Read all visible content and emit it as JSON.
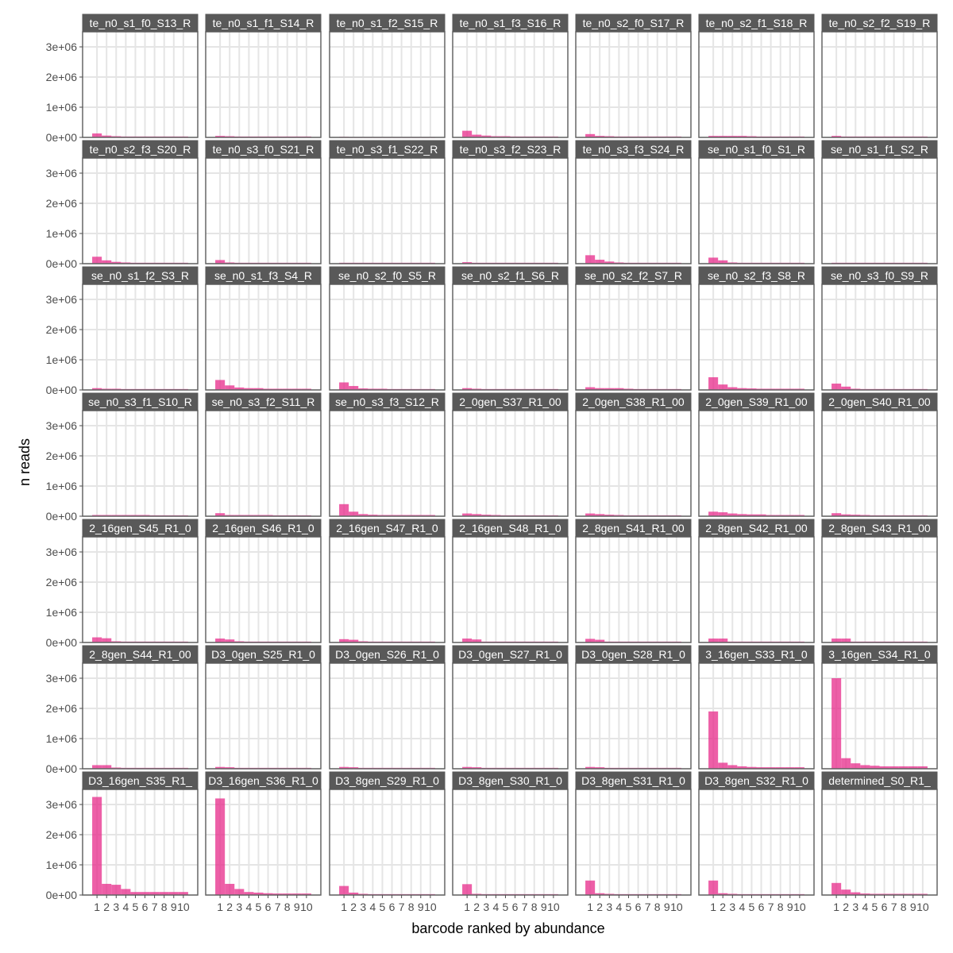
{
  "chart_data": {
    "type": "bar",
    "layout": "faceted 7x7 grid",
    "xlabel": "barcode ranked by abundance",
    "ylabel": "n reads",
    "x_ticks": [
      "1",
      "2",
      "3",
      "4",
      "5",
      "6",
      "7",
      "8",
      "9",
      "10"
    ],
    "y_ticks": [
      "0e+00",
      "1e+06",
      "2e+06",
      "3e+06"
    ],
    "ylim": [
      0,
      3500000
    ],
    "bar_color": "#e7298a",
    "strip_color": "#595959",
    "grid": true,
    "facets": [
      {
        "label": "te_n0_s1_f0_S13_R",
        "values": [
          130000,
          60000,
          40000,
          30000,
          30000,
          30000,
          30000,
          30000,
          30000,
          30000
        ]
      },
      {
        "label": "te_n0_s1_f1_S14_R",
        "values": [
          50000,
          40000,
          30000,
          30000,
          30000,
          30000,
          30000,
          30000,
          30000,
          30000
        ]
      },
      {
        "label": "te_n0_s1_f2_S15_R",
        "values": [
          20000,
          10000,
          10000,
          10000,
          10000,
          10000,
          10000,
          10000,
          10000,
          10000
        ]
      },
      {
        "label": "te_n0_s1_f3_S16_R",
        "values": [
          220000,
          90000,
          60000,
          40000,
          40000,
          30000,
          30000,
          30000,
          30000,
          30000
        ]
      },
      {
        "label": "te_n0_s2_f0_S17_R",
        "values": [
          110000,
          50000,
          40000,
          30000,
          30000,
          30000,
          30000,
          30000,
          30000,
          30000
        ]
      },
      {
        "label": "te_n0_s2_f1_S18_R",
        "values": [
          50000,
          50000,
          50000,
          50000,
          40000,
          30000,
          30000,
          30000,
          30000,
          30000
        ]
      },
      {
        "label": "te_n0_s2_f2_S19_R",
        "values": [
          50000,
          30000,
          30000,
          30000,
          30000,
          30000,
          30000,
          30000,
          30000,
          30000
        ]
      },
      {
        "label": "te_n0_s2_f3_S20_R",
        "values": [
          230000,
          110000,
          60000,
          40000,
          30000,
          30000,
          30000,
          30000,
          30000,
          30000
        ]
      },
      {
        "label": "te_n0_s3_f0_S21_R",
        "values": [
          120000,
          40000,
          30000,
          30000,
          30000,
          30000,
          30000,
          30000,
          30000,
          30000
        ]
      },
      {
        "label": "te_n0_s3_f1_S22_R",
        "values": [
          30000,
          30000,
          30000,
          30000,
          30000,
          30000,
          30000,
          30000,
          30000,
          30000
        ]
      },
      {
        "label": "te_n0_s3_f2_S23_R",
        "values": [
          50000,
          30000,
          30000,
          30000,
          30000,
          30000,
          30000,
          30000,
          30000,
          30000
        ]
      },
      {
        "label": "te_n0_s3_f3_S24_R",
        "values": [
          280000,
          130000,
          70000,
          40000,
          30000,
          30000,
          30000,
          30000,
          30000,
          30000
        ]
      },
      {
        "label": "se_n0_s1_f0_S1_R",
        "values": [
          200000,
          110000,
          40000,
          30000,
          30000,
          30000,
          30000,
          30000,
          30000,
          30000
        ]
      },
      {
        "label": "se_n0_s1_f1_S2_R",
        "values": [
          30000,
          30000,
          30000,
          30000,
          30000,
          30000,
          30000,
          30000,
          30000,
          30000
        ]
      },
      {
        "label": "se_n0_s1_f2_S3_R",
        "values": [
          60000,
          40000,
          40000,
          30000,
          30000,
          30000,
          30000,
          30000,
          30000,
          30000
        ]
      },
      {
        "label": "se_n0_s1_f3_S4_R",
        "values": [
          330000,
          150000,
          80000,
          60000,
          60000,
          40000,
          40000,
          40000,
          40000,
          40000
        ]
      },
      {
        "label": "se_n0_s2_f0_S5_R",
        "values": [
          250000,
          130000,
          50000,
          40000,
          40000,
          30000,
          30000,
          30000,
          30000,
          30000
        ]
      },
      {
        "label": "se_n0_s2_f1_S6_R",
        "values": [
          60000,
          40000,
          30000,
          30000,
          30000,
          30000,
          30000,
          30000,
          30000,
          30000
        ]
      },
      {
        "label": "se_n0_s2_f2_S7_R",
        "values": [
          90000,
          60000,
          60000,
          60000,
          40000,
          30000,
          30000,
          30000,
          30000,
          30000
        ]
      },
      {
        "label": "se_n0_s2_f3_S8_R",
        "values": [
          420000,
          180000,
          90000,
          60000,
          50000,
          40000,
          40000,
          40000,
          40000,
          40000
        ]
      },
      {
        "label": "se_n0_s3_f0_S9_R",
        "values": [
          210000,
          110000,
          40000,
          30000,
          30000,
          30000,
          30000,
          30000,
          30000,
          30000
        ]
      },
      {
        "label": "se_n0_s3_f1_S10_R",
        "values": [
          40000,
          40000,
          40000,
          40000,
          40000,
          40000,
          30000,
          30000,
          30000,
          30000
        ]
      },
      {
        "label": "se_n0_s3_f2_S11_R",
        "values": [
          100000,
          40000,
          40000,
          40000,
          40000,
          40000,
          30000,
          30000,
          30000,
          30000
        ]
      },
      {
        "label": "se_n0_s3_f3_S12_R",
        "values": [
          400000,
          150000,
          70000,
          50000,
          40000,
          40000,
          40000,
          40000,
          40000,
          40000
        ]
      },
      {
        "label": "2_0gen_S37_R1_00",
        "values": [
          90000,
          70000,
          50000,
          40000,
          30000,
          30000,
          30000,
          30000,
          30000,
          30000
        ]
      },
      {
        "label": "2_0gen_S38_R1_00",
        "values": [
          90000,
          70000,
          50000,
          40000,
          30000,
          30000,
          30000,
          30000,
          30000,
          30000
        ]
      },
      {
        "label": "2_0gen_S39_R1_00",
        "values": [
          150000,
          130000,
          90000,
          70000,
          60000,
          60000,
          40000,
          40000,
          40000,
          40000
        ]
      },
      {
        "label": "2_0gen_S40_R1_00",
        "values": [
          100000,
          60000,
          50000,
          40000,
          30000,
          30000,
          30000,
          30000,
          30000,
          30000
        ]
      },
      {
        "label": "2_16gen_S45_R1_0",
        "values": [
          170000,
          140000,
          40000,
          30000,
          30000,
          30000,
          30000,
          30000,
          30000,
          30000
        ]
      },
      {
        "label": "2_16gen_S46_R1_0",
        "values": [
          130000,
          100000,
          40000,
          30000,
          30000,
          30000,
          30000,
          30000,
          30000,
          30000
        ]
      },
      {
        "label": "2_16gen_S47_R1_0",
        "values": [
          110000,
          90000,
          40000,
          30000,
          30000,
          30000,
          30000,
          30000,
          30000,
          30000
        ]
      },
      {
        "label": "2_16gen_S48_R1_0",
        "values": [
          130000,
          100000,
          30000,
          30000,
          30000,
          30000,
          30000,
          30000,
          30000,
          30000
        ]
      },
      {
        "label": "2_8gen_S41_R1_00",
        "values": [
          120000,
          90000,
          30000,
          30000,
          30000,
          30000,
          30000,
          30000,
          30000,
          30000
        ]
      },
      {
        "label": "2_8gen_S42_R1_00",
        "values": [
          130000,
          130000,
          30000,
          30000,
          30000,
          30000,
          30000,
          30000,
          30000,
          30000
        ]
      },
      {
        "label": "2_8gen_S43_R1_00",
        "values": [
          130000,
          130000,
          30000,
          30000,
          30000,
          30000,
          30000,
          30000,
          30000,
          30000
        ]
      },
      {
        "label": "2_8gen_S44_R1_00",
        "values": [
          120000,
          120000,
          40000,
          30000,
          30000,
          30000,
          30000,
          30000,
          30000,
          30000
        ]
      },
      {
        "label": "D3_0gen_S25_R1_0",
        "values": [
          60000,
          50000,
          30000,
          30000,
          30000,
          30000,
          30000,
          30000,
          30000,
          30000
        ]
      },
      {
        "label": "D3_0gen_S26_R1_0",
        "values": [
          60000,
          50000,
          30000,
          30000,
          30000,
          30000,
          30000,
          30000,
          30000,
          30000
        ]
      },
      {
        "label": "D3_0gen_S27_R1_0",
        "values": [
          60000,
          50000,
          30000,
          30000,
          30000,
          30000,
          30000,
          30000,
          30000,
          30000
        ]
      },
      {
        "label": "D3_0gen_S28_R1_0",
        "values": [
          60000,
          50000,
          30000,
          30000,
          30000,
          30000,
          30000,
          30000,
          30000,
          30000
        ]
      },
      {
        "label": "3_16gen_S33_R1_0",
        "values": [
          1900000,
          200000,
          120000,
          80000,
          60000,
          50000,
          50000,
          50000,
          50000,
          50000
        ]
      },
      {
        "label": "3_16gen_S34_R1_0",
        "values": [
          3000000,
          350000,
          180000,
          120000,
          100000,
          80000,
          80000,
          80000,
          80000,
          80000
        ]
      },
      {
        "label": "D3_16gen_S35_R1_",
        "values": [
          3250000,
          370000,
          340000,
          200000,
          100000,
          100000,
          100000,
          100000,
          100000,
          100000
        ]
      },
      {
        "label": "D3_16gen_S36_R1_0",
        "values": [
          3200000,
          370000,
          200000,
          100000,
          80000,
          60000,
          50000,
          50000,
          50000,
          50000
        ]
      },
      {
        "label": "D3_8gen_S29_R1_0",
        "values": [
          300000,
          80000,
          40000,
          30000,
          30000,
          30000,
          30000,
          30000,
          30000,
          30000
        ]
      },
      {
        "label": "D3_8gen_S30_R1_0",
        "values": [
          360000,
          40000,
          30000,
          30000,
          30000,
          30000,
          30000,
          30000,
          30000,
          30000
        ]
      },
      {
        "label": "D3_8gen_S31_R1_0",
        "values": [
          480000,
          60000,
          40000,
          30000,
          30000,
          30000,
          30000,
          30000,
          30000,
          30000
        ]
      },
      {
        "label": "D3_8gen_S32_R1_0",
        "values": [
          480000,
          60000,
          40000,
          30000,
          30000,
          30000,
          30000,
          30000,
          30000,
          30000
        ]
      },
      {
        "label": "determined_S0_R1_",
        "values": [
          400000,
          180000,
          90000,
          50000,
          40000,
          40000,
          40000,
          40000,
          40000,
          40000
        ]
      }
    ]
  }
}
